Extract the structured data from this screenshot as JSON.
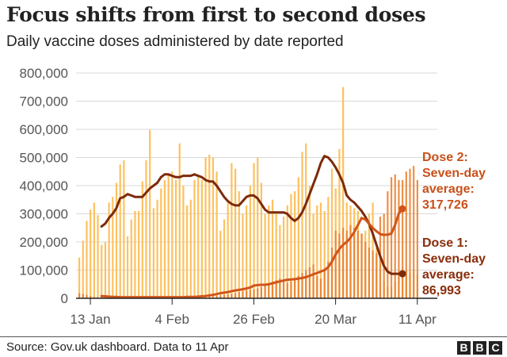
{
  "header": {
    "title": "Focus shifts from first to second doses",
    "subtitle": "Daily vaccine doses administered by date reported"
  },
  "footer": {
    "source": "Source: Gov.uk dashboard. Data to 11 Apr",
    "logo_letters": [
      "B",
      "B",
      "C"
    ]
  },
  "annotations": {
    "dose2_label": [
      "Dose 2:",
      "Seven-day",
      "average:",
      "317,726"
    ],
    "dose1_label": [
      "Dose 1:",
      "Seven-day",
      "average:",
      "86,993"
    ]
  },
  "colors": {
    "dose1_bar": "#fdc15f",
    "dose2_bar": "#e97d28",
    "dose1_line": "#7d2a0a",
    "dose2_line": "#d0541a",
    "dose2_text": "#c8501a",
    "dose1_text": "#8a2d0b",
    "grid": "#d8d8d8",
    "axis_text": "#555555"
  },
  "chart_data": {
    "type": "bar",
    "title": "Focus shifts from first to second doses",
    "subtitle": "Daily vaccine doses administered by date reported",
    "xlabel": "",
    "ylabel": "",
    "ylim": [
      0,
      800000
    ],
    "yticks": [
      0,
      100000,
      200000,
      300000,
      400000,
      500000,
      600000,
      700000,
      800000
    ],
    "ytick_labels": [
      "0",
      "100,000",
      "200,000",
      "300,000",
      "400,000",
      "500,000",
      "600,000",
      "700,000",
      "800,000"
    ],
    "xtick_labels": [
      "13 Jan",
      "4 Feb",
      "26 Feb",
      "20 Mar",
      "11 Apr"
    ],
    "grid": true,
    "legend": "direct labels at right",
    "x_start": "10 Jan",
    "x_end": "11 Apr",
    "series": [
      {
        "name": "Dose 1 daily",
        "kind": "bar",
        "values": [
          145000,
          205000,
          275000,
          315000,
          340000,
          295000,
          190000,
          200000,
          340000,
          360000,
          410000,
          475000,
          490000,
          220000,
          280000,
          310000,
          310000,
          415000,
          490000,
          598000,
          320000,
          350000,
          390000,
          420000,
          440000,
          450000,
          420000,
          550000,
          400000,
          330000,
          350000,
          420000,
          440000,
          420000,
          500000,
          510000,
          500000,
          450000,
          240000,
          280000,
          340000,
          480000,
          460000,
          380000,
          300000,
          330000,
          400000,
          480000,
          500000,
          410000,
          300000,
          330000,
          350000,
          300000,
          260000,
          290000,
          330000,
          370000,
          380000,
          430000,
          520000,
          550000,
          400000,
          300000,
          330000,
          340000,
          310000,
          360000,
          460000,
          390000,
          530000,
          750000,
          340000,
          330000,
          320000,
          310000,
          230000,
          240000,
          300000,
          340000,
          180000,
          120000,
          60000,
          40000,
          40000,
          60000,
          90000,
          110000,
          100000,
          90000,
          100000,
          85000
        ],
        "color": "#fdc15f"
      },
      {
        "name": "Dose 2 daily",
        "kind": "bar",
        "values": [
          18000,
          15000,
          12000,
          8000,
          5000,
          4000,
          4000,
          4000,
          4000,
          4000,
          4000,
          4000,
          4000,
          4000,
          4000,
          4000,
          4000,
          4000,
          4000,
          6000,
          5000,
          5000,
          5000,
          5000,
          5000,
          5000,
          5000,
          5000,
          5000,
          5000,
          5000,
          6000,
          6000,
          6000,
          7000,
          7000,
          8000,
          9000,
          10000,
          12000,
          14000,
          15000,
          18000,
          22000,
          25000,
          28000,
          30000,
          32000,
          35000,
          40000,
          45000,
          55000,
          60000,
          65000,
          70000,
          60000,
          55000,
          60000,
          70000,
          80000,
          90000,
          100000,
          110000,
          120000,
          80000,
          70000,
          100000,
          130000,
          180000,
          240000,
          230000,
          250000,
          240000,
          260000,
          250000,
          240000,
          230000,
          200000,
          180000,
          170000,
          160000,
          290000,
          300000,
          380000,
          430000,
          440000,
          420000,
          420000,
          450000,
          460000,
          470000,
          420000
        ],
        "color": "#e97d28"
      },
      {
        "name": "Dose 1 seven-day average",
        "kind": "line",
        "x_start": "16 Jan",
        "values": [
          255000,
          265000,
          285000,
          300000,
          320000,
          355000,
          360000,
          370000,
          365000,
          360000,
          360000,
          360000,
          375000,
          390000,
          400000,
          410000,
          430000,
          440000,
          440000,
          435000,
          430000,
          430000,
          435000,
          435000,
          435000,
          440000,
          435000,
          430000,
          420000,
          415000,
          415000,
          400000,
          380000,
          360000,
          345000,
          335000,
          330000,
          330000,
          345000,
          360000,
          365000,
          365000,
          355000,
          335000,
          315000,
          305000,
          305000,
          305000,
          305000,
          305000,
          300000,
          285000,
          275000,
          285000,
          305000,
          335000,
          370000,
          405000,
          440000,
          480000,
          505000,
          500000,
          485000,
          465000,
          440000,
          410000,
          365000,
          350000,
          340000,
          325000,
          310000,
          290000,
          265000,
          230000,
          190000,
          150000,
          115000,
          95000,
          87000,
          87000,
          87000,
          86993
        ],
        "color": "#7d2a0a"
      },
      {
        "name": "Dose 2 seven-day average",
        "kind": "line",
        "x_start": "16 Jan",
        "values": [
          8000,
          7000,
          6000,
          5000,
          5000,
          4000,
          4000,
          4000,
          4000,
          4000,
          4000,
          4000,
          4000,
          4000,
          4000,
          4000,
          4000,
          4000,
          4000,
          4000,
          4000,
          4000,
          4000,
          5000,
          5000,
          5000,
          6000,
          7000,
          8000,
          10000,
          12000,
          15000,
          18000,
          20000,
          22000,
          25000,
          28000,
          30000,
          32000,
          35000,
          38000,
          45000,
          47000,
          48000,
          48000,
          50000,
          53000,
          57000,
          60000,
          63000,
          66000,
          67000,
          68000,
          70000,
          72000,
          75000,
          80000,
          85000,
          90000,
          95000,
          100000,
          110000,
          130000,
          155000,
          175000,
          190000,
          200000,
          215000,
          235000,
          260000,
          285000,
          280000,
          265000,
          250000,
          238000,
          228000,
          225000,
          226000,
          230000,
          260000,
          300000,
          317726
        ],
        "color": "#d0541a"
      }
    ],
    "annotations": [
      {
        "text": "Dose 2: Seven-day average: 317,726",
        "x": "11 Apr",
        "y": 317726
      },
      {
        "text": "Dose 1: Seven-day average: 86,993",
        "x": "11 Apr",
        "y": 86993
      }
    ]
  }
}
